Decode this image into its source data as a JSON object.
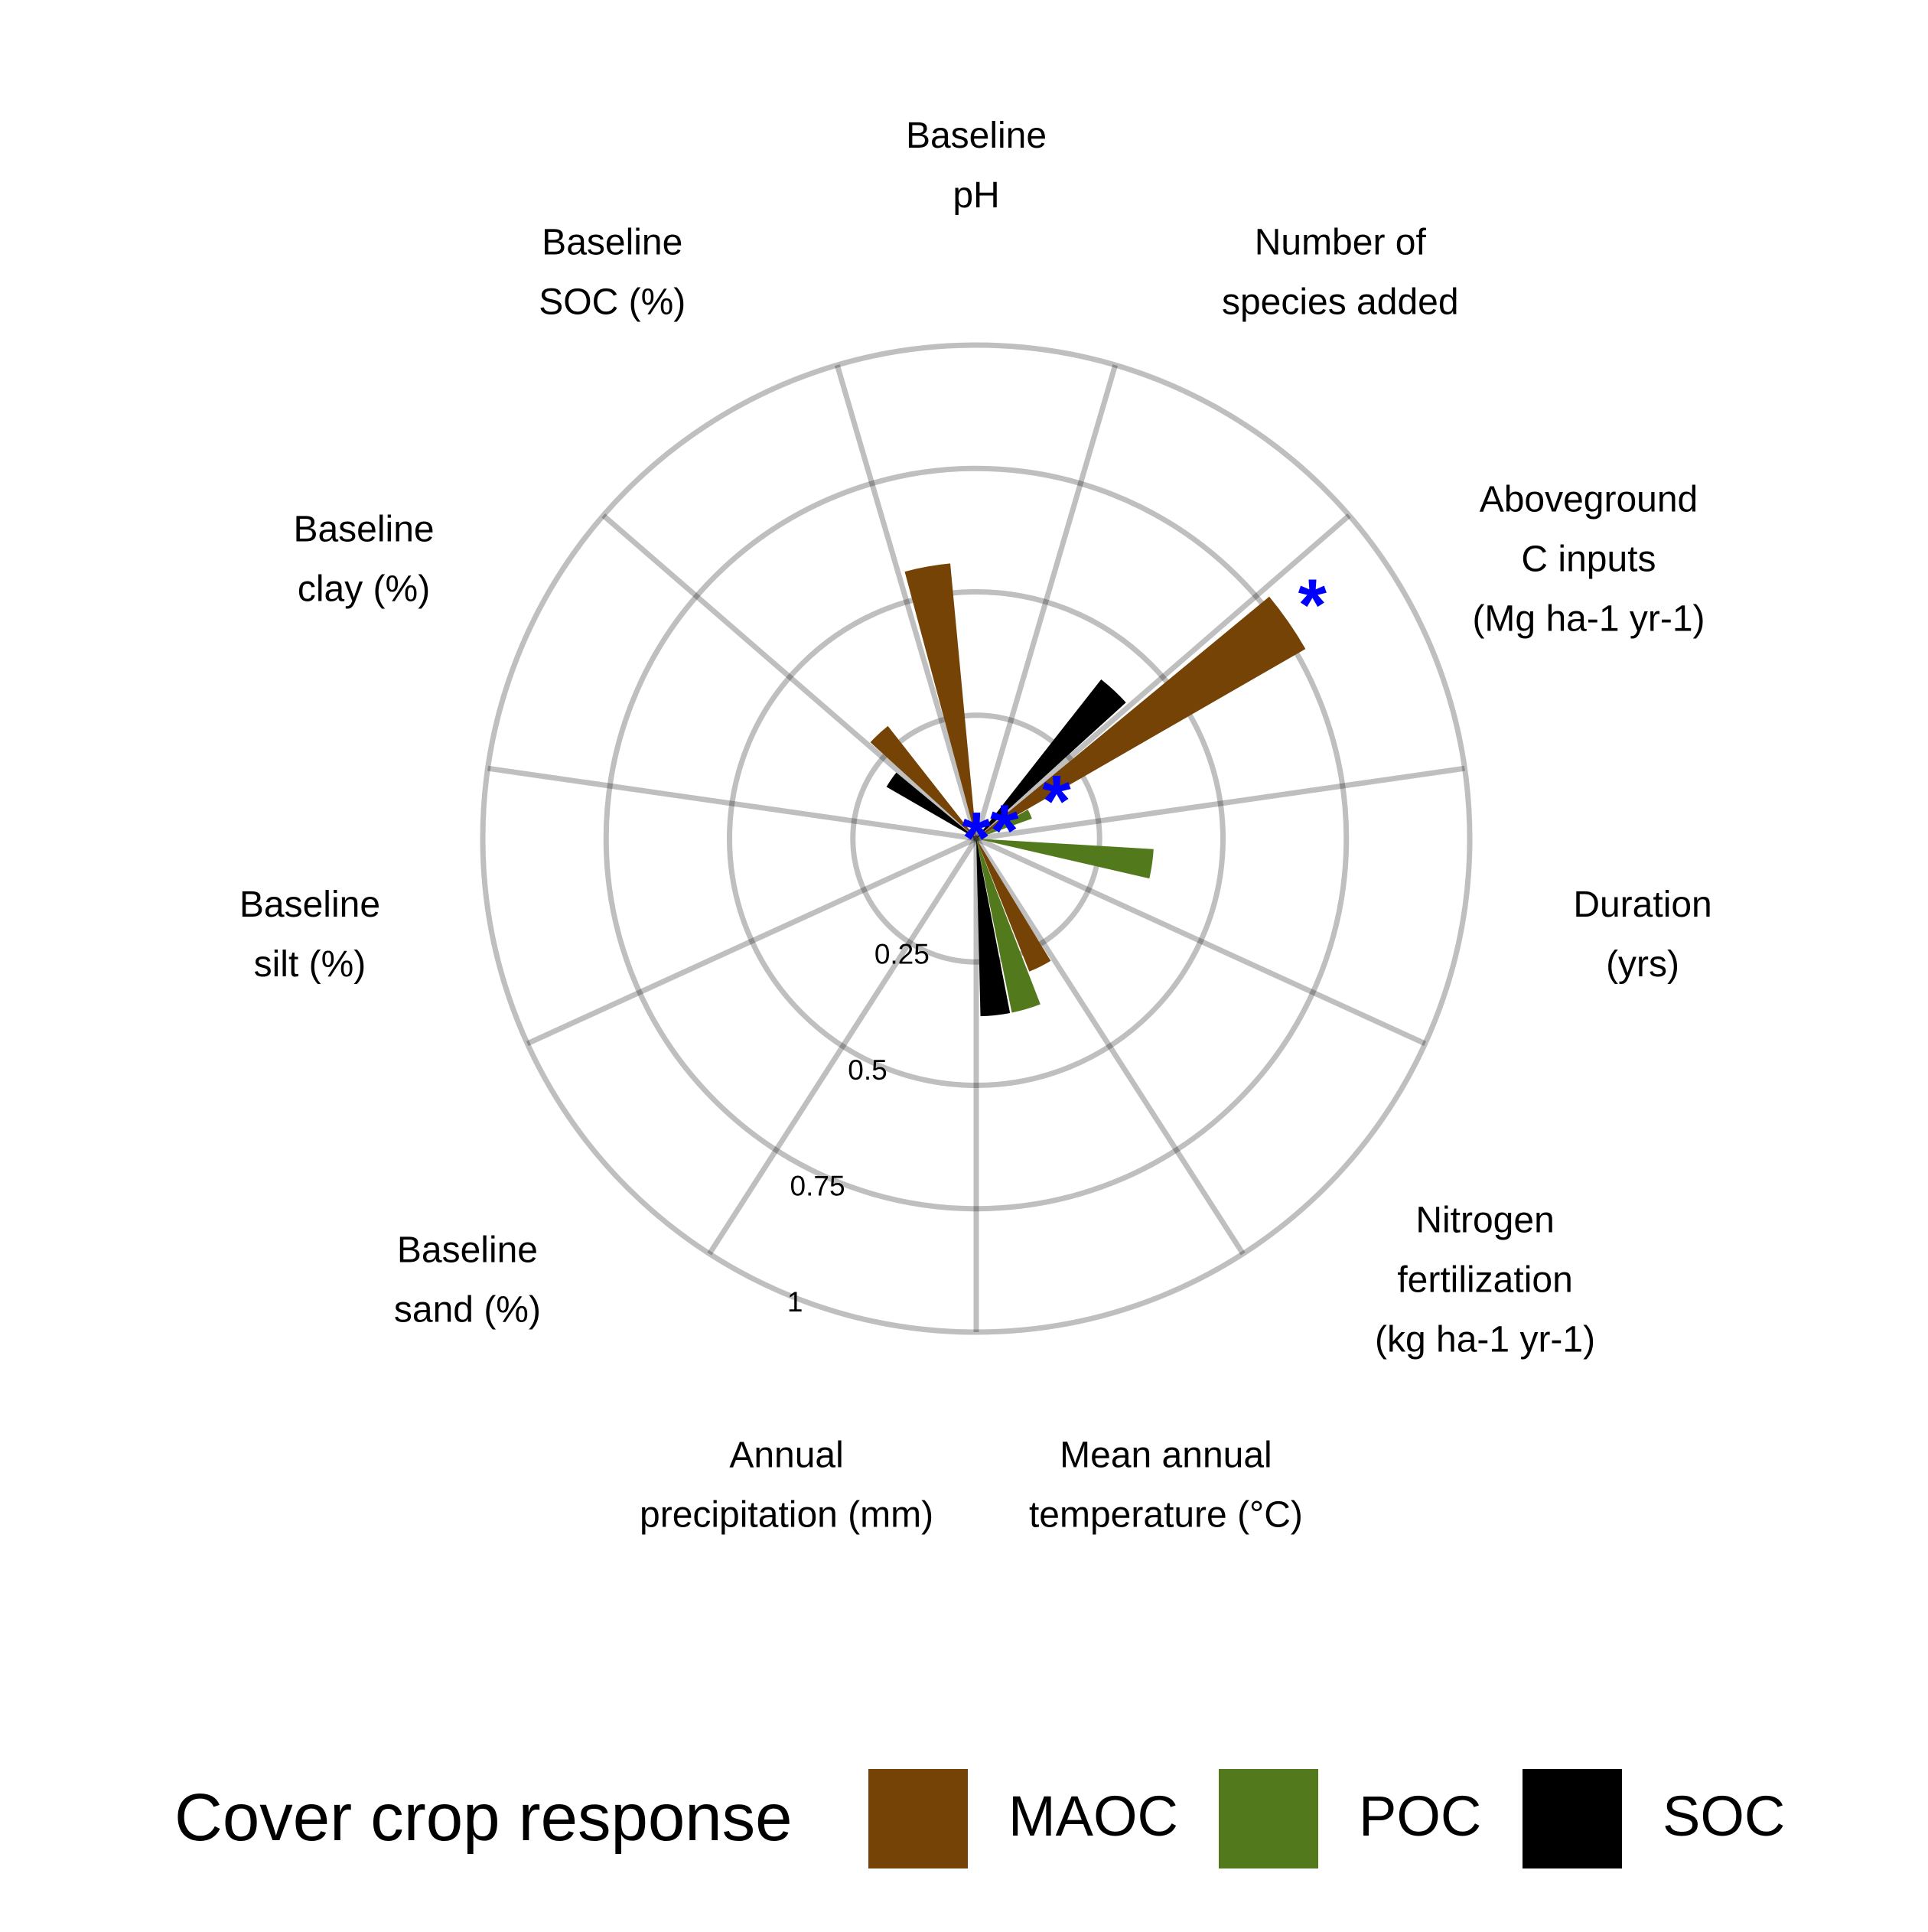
{
  "chart_data": {
    "type": "radial-bar",
    "categories": [
      {
        "id": "ph",
        "lines": [
          "Baseline",
          "pH"
        ]
      },
      {
        "id": "species",
        "lines": [
          "Number of",
          "species added"
        ]
      },
      {
        "id": "aboveground",
        "lines": [
          "Aboveground",
          "C inputs",
          "(Mg ha-1 yr-1)"
        ]
      },
      {
        "id": "duration",
        "lines": [
          "Duration",
          "(yrs)"
        ]
      },
      {
        "id": "nitrogen",
        "lines": [
          "Nitrogen",
          "fertilization",
          "(kg ha-1 yr-1)"
        ]
      },
      {
        "id": "mat",
        "lines": [
          "Mean annual",
          "temperature (°C)"
        ]
      },
      {
        "id": "map",
        "lines": [
          "Annual",
          "precipitation (mm)"
        ]
      },
      {
        "id": "sand",
        "lines": [
          "Baseline",
          "sand (%)"
        ]
      },
      {
        "id": "silt",
        "lines": [
          "Baseline",
          "silt (%)"
        ]
      },
      {
        "id": "clay",
        "lines": [
          "Baseline",
          "clay (%)"
        ]
      },
      {
        "id": "soc",
        "lines": [
          "Baseline",
          "SOC (%)"
        ]
      }
    ],
    "series": [
      {
        "name": "MAOC",
        "color": "#764306",
        "values": [
          0.56,
          0,
          0.77,
          0,
          0,
          0.29,
          0,
          0,
          0,
          0,
          0.29
        ]
      },
      {
        "name": "POC",
        "color": "#53791d",
        "values": [
          0,
          0,
          0.12,
          0.36,
          0,
          0.36,
          0,
          0,
          0,
          0,
          0
        ]
      },
      {
        "name": "SOC",
        "color": "#000000",
        "values": [
          0,
          0.41,
          0,
          0,
          0,
          0.36,
          0,
          0,
          0,
          0.21,
          0
        ]
      }
    ],
    "significance": [
      {
        "category": "aboveground",
        "series": "SOC",
        "label": "*"
      },
      {
        "category": "aboveground",
        "series": "MAOC",
        "label": "*"
      },
      {
        "category": "aboveground",
        "series": "POC",
        "label": "*"
      },
      {
        "category": "center",
        "series": "",
        "label": "*"
      }
    ],
    "radial_ticks": [
      "0.25",
      "0.5",
      "0.75",
      "1"
    ],
    "radial_values": [
      0.25,
      0.5,
      0.75,
      1.0
    ],
    "ylim": [
      0,
      1
    ],
    "legend_position": "bottom"
  },
  "legend": {
    "title": "Cover crop response",
    "items": [
      {
        "label": "MAOC",
        "color": "#764306"
      },
      {
        "label": "POC",
        "color": "#53791d"
      },
      {
        "label": "SOC",
        "color": "#000000"
      }
    ]
  }
}
